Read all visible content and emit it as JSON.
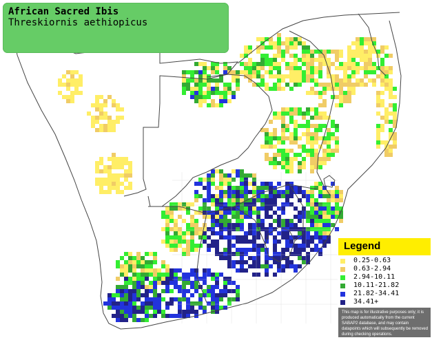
{
  "title": {
    "common_name": "African Sacred Ibis",
    "scientific_name": "Threskiornis aethiopicus"
  },
  "legend": {
    "heading": "Legend",
    "classes": [
      {
        "label": "0.25-0.63",
        "color": "#ffee66"
      },
      {
        "label": "0.63-2.94",
        "color": "#f0cc66"
      },
      {
        "label": "2.94-10.11",
        "color": "#33ee33"
      },
      {
        "label": "10.11-21.82",
        "color": "#33aa33"
      },
      {
        "label": "21.82-34.41",
        "color": "#2233dd"
      },
      {
        "label": "34.41+",
        "color": "#222288"
      }
    ],
    "disclaimer": "This map is for illustrative purposes only; it is produced automatically from the current SABAP2 database, and may contain datapoints which will subsequently be removed during checking operations."
  },
  "colors": {
    "title_box": "#66cc66",
    "legend_heading_bg": "#ffee00",
    "legend_panel_bg": "#6e6e6e",
    "border_lines": "#444444"
  }
}
